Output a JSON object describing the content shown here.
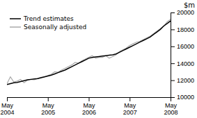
{
  "chart_data": {
    "type": "line",
    "y_label": "$m",
    "categories": [
      "May\n2004",
      null,
      null,
      null,
      null,
      null,
      null,
      null,
      null,
      null,
      null,
      null,
      "May\n2005",
      null,
      null,
      null,
      null,
      null,
      null,
      null,
      null,
      null,
      null,
      null,
      "May\n2006",
      null,
      null,
      null,
      null,
      null,
      null,
      null,
      null,
      null,
      null,
      null,
      "May\n2007",
      null,
      null,
      null,
      null,
      null,
      null,
      null,
      null,
      null,
      null,
      null,
      "May\n2008"
    ],
    "series": [
      {
        "name": "Seasonally adjusted",
        "color": "#aaaaaa",
        "values": [
          11600,
          12400,
          11800,
          11900,
          12100,
          11700,
          12000,
          12100,
          12050,
          12200,
          12350,
          12400,
          12550,
          12700,
          13000,
          12950,
          13200,
          13400,
          13600,
          13800,
          14100,
          14000,
          14300,
          14500,
          14700,
          14900,
          14600,
          14700,
          14700,
          14900,
          14600,
          14800,
          15000,
          15400,
          15600,
          15800,
          16100,
          16300,
          16500,
          16600,
          16800,
          17000,
          17200,
          17500,
          17800,
          18100,
          18400,
          18900,
          19200
        ]
      },
      {
        "name": "Trend estimates",
        "color": "#000000",
        "values": [
          11500,
          11600,
          11700,
          11750,
          11850,
          11950,
          12050,
          12100,
          12150,
          12200,
          12300,
          12400,
          12500,
          12600,
          12750,
          12900,
          13050,
          13200,
          13400,
          13600,
          13800,
          14000,
          14200,
          14400,
          14600,
          14700,
          14750,
          14800,
          14850,
          14900,
          14950,
          15000,
          15100,
          15300,
          15500,
          15700,
          15900,
          16100,
          16300,
          16500,
          16700,
          16900,
          17100,
          17400,
          17700,
          18000,
          18400,
          18700,
          19000
        ]
      }
    ],
    "ylim": [
      10000,
      20000
    ],
    "yticks": [
      10000,
      12000,
      14000,
      16000,
      18000,
      20000
    ],
    "grid": false,
    "legend": "top-left"
  }
}
